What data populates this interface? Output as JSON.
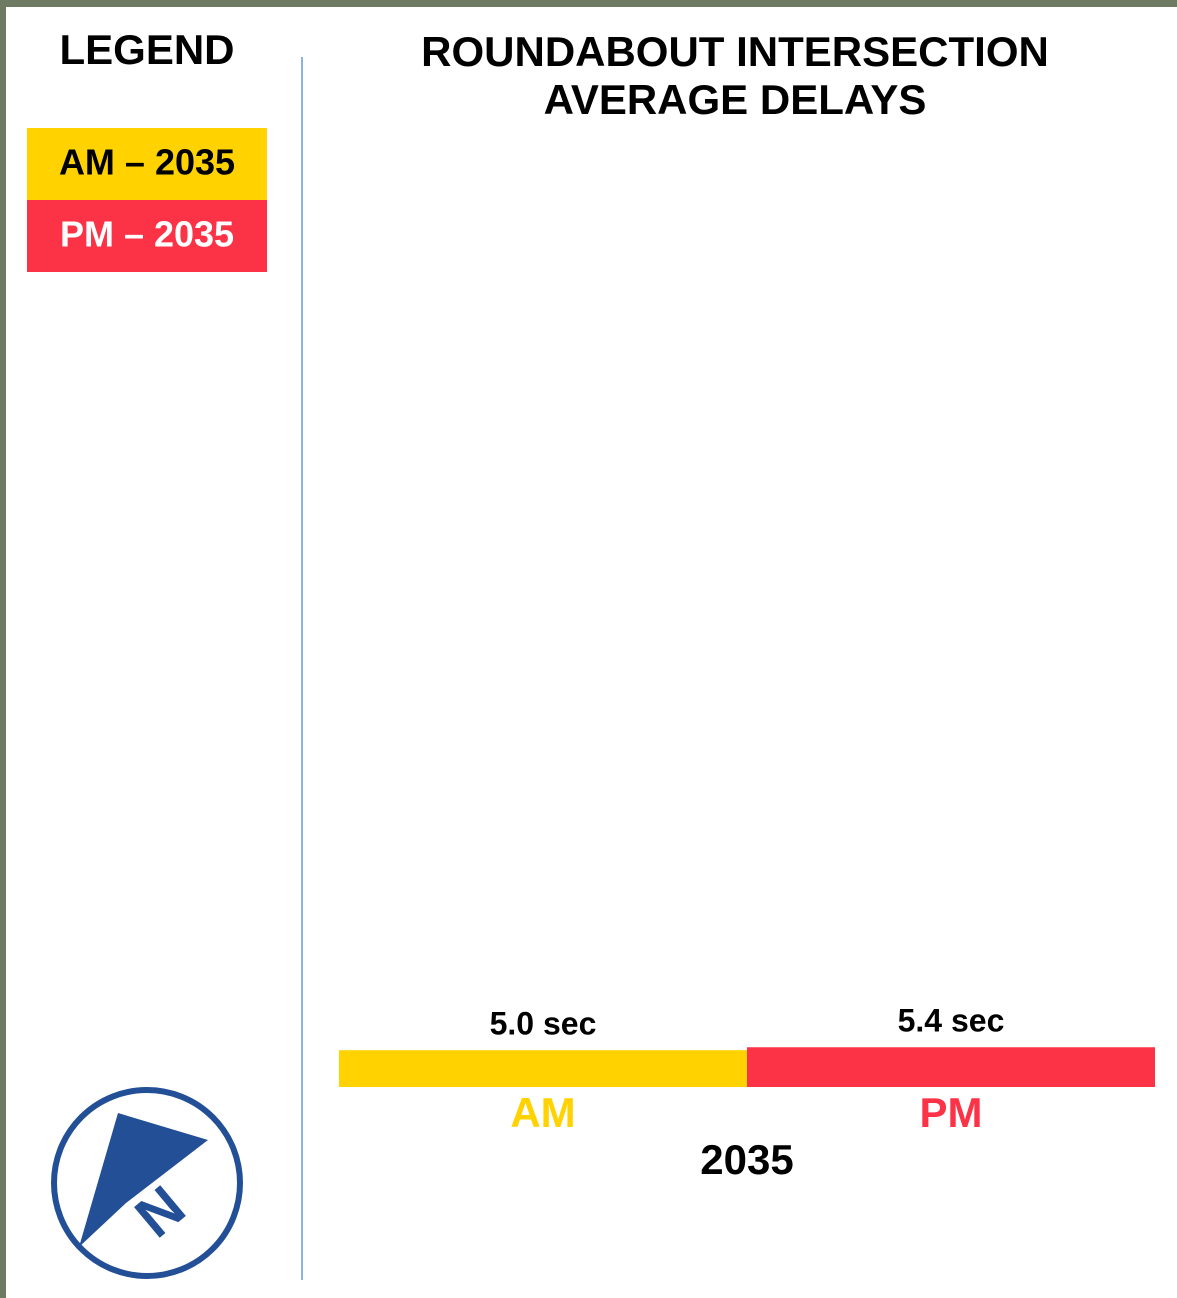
{
  "chart_data": {
    "type": "bar",
    "title": "ROUNDABOUT INTERSECTION AVERAGE DELAYS",
    "legend_title": "LEGEND",
    "legend": [
      "AM – 2035",
      "PM – 2035"
    ],
    "categories": [
      "AM",
      "PM"
    ],
    "values": [
      5.0,
      5.4
    ],
    "value_labels": [
      "5.0 sec",
      "5.4 sec"
    ],
    "colors": [
      "#ffd200",
      "#fc3347"
    ],
    "x_label": "2035",
    "ylim": [
      0,
      130
    ]
  }
}
